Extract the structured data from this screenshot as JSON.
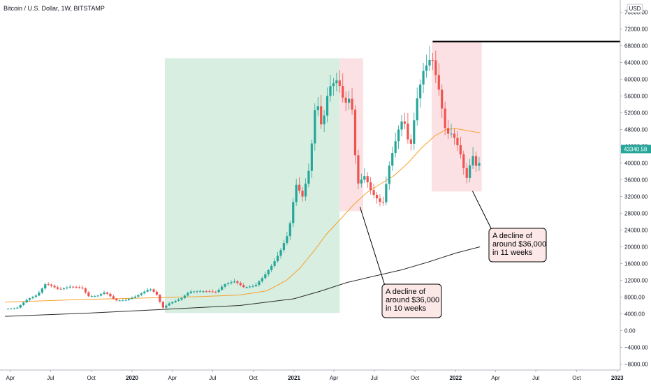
{
  "title": "Bitcoin / U.S. Dollar, 1W, BITSTAMP",
  "currency_unit": "USD",
  "chart_data": {
    "type": "candlestick",
    "symbol": "BTCUSD",
    "exchange": "BITSTAMP",
    "interval": "1W",
    "y_axis": {
      "min": -10000,
      "max": 78000,
      "step": 4000,
      "tick_labels": [
        "76000.00",
        "72000.00",
        "68000.00",
        "64000.00",
        "60000.00",
        "56000.00",
        "52000.00",
        "48000.00",
        "44000.00",
        "40000.00",
        "36000.00",
        "32000.00",
        "28000.00",
        "24000.00",
        "20000.00",
        "16000.00",
        "12000.00",
        "8000.00",
        "4000.00",
        "0.00",
        "−4000.00",
        "−8000.00"
      ]
    },
    "x_axis": {
      "start": "2019-03-20",
      "end": "2022-12-31",
      "tick_labels": [
        {
          "label": "Apr",
          "date": "2019-04-01",
          "bold": false
        },
        {
          "label": "Jul",
          "date": "2019-07-01",
          "bold": false
        },
        {
          "label": "Oct",
          "date": "2019-10-01",
          "bold": false
        },
        {
          "label": "2020",
          "date": "2020-01-01",
          "bold": true
        },
        {
          "label": "Apr",
          "date": "2020-04-01",
          "bold": false
        },
        {
          "label": "Jul",
          "date": "2020-07-01",
          "bold": false
        },
        {
          "label": "Oct",
          "date": "2020-10-01",
          "bold": false
        },
        {
          "label": "2021",
          "date": "2021-01-01",
          "bold": true
        },
        {
          "label": "Apr",
          "date": "2021-04-01",
          "bold": false
        },
        {
          "label": "Jul",
          "date": "2021-07-01",
          "bold": false
        },
        {
          "label": "Oct",
          "date": "2021-10-01",
          "bold": false
        },
        {
          "label": "2022",
          "date": "2022-01-01",
          "bold": true
        },
        {
          "label": "Apr",
          "date": "2022-04-01",
          "bold": false
        },
        {
          "label": "Jul",
          "date": "2022-07-01",
          "bold": false
        },
        {
          "label": "Oct",
          "date": "2022-10-01",
          "bold": false
        },
        {
          "label": "2023",
          "date": "2023-01-01",
          "bold": true
        }
      ]
    },
    "close_path": [
      [
        "2019-03-20",
        5200
      ],
      [
        "2019-04-15",
        5300
      ],
      [
        "2019-05-10",
        7500
      ],
      [
        "2019-06-01",
        8500
      ],
      [
        "2019-06-20",
        11200
      ],
      [
        "2019-07-01",
        10800
      ],
      [
        "2019-07-20",
        9800
      ],
      [
        "2019-08-15",
        10500
      ],
      [
        "2019-09-10",
        10200
      ],
      [
        "2019-09-25",
        8200
      ],
      [
        "2019-10-15",
        8300
      ],
      [
        "2019-11-01",
        9200
      ],
      [
        "2019-11-25",
        7200
      ],
      [
        "2019-12-15",
        7200
      ],
      [
        "2020-01-10",
        8200
      ],
      [
        "2020-02-10",
        10000
      ],
      [
        "2020-02-25",
        8800
      ],
      [
        "2020-03-10",
        5400
      ],
      [
        "2020-03-25",
        6500
      ],
      [
        "2020-04-20",
        7600
      ],
      [
        "2020-05-10",
        9300
      ],
      [
        "2020-06-15",
        9400
      ],
      [
        "2020-07-10",
        9200
      ],
      [
        "2020-07-27",
        11000
      ],
      [
        "2020-08-20",
        11800
      ],
      [
        "2020-09-10",
        10300
      ],
      [
        "2020-10-05",
        10700
      ],
      [
        "2020-10-25",
        13000
      ],
      [
        "2020-11-15",
        16000
      ],
      [
        "2020-12-01",
        19000
      ],
      [
        "2020-12-20",
        23500
      ],
      [
        "2021-01-05",
        35000
      ],
      [
        "2021-01-20",
        32000
      ],
      [
        "2021-02-05",
        39000
      ],
      [
        "2021-02-20",
        56000
      ],
      [
        "2021-03-05",
        48000
      ],
      [
        "2021-03-20",
        58000
      ],
      [
        "2021-04-10",
        60000
      ],
      [
        "2021-04-25",
        54000
      ],
      [
        "2021-05-10",
        56000
      ],
      [
        "2021-05-18",
        43000
      ],
      [
        "2021-05-25",
        35000
      ],
      [
        "2021-06-10",
        37000
      ],
      [
        "2021-06-25",
        33000
      ],
      [
        "2021-07-20",
        30000
      ],
      [
        "2021-08-05",
        40000
      ],
      [
        "2021-08-25",
        48000
      ],
      [
        "2021-09-05",
        51000
      ],
      [
        "2021-09-20",
        43000
      ],
      [
        "2021-10-05",
        55000
      ],
      [
        "2021-10-20",
        62000
      ],
      [
        "2021-11-08",
        65500
      ],
      [
        "2021-11-25",
        57000
      ],
      [
        "2021-12-10",
        47000
      ],
      [
        "2021-12-25",
        47000
      ],
      [
        "2022-01-10",
        43000
      ],
      [
        "2022-01-25",
        36000
      ],
      [
        "2022-02-08",
        42000
      ],
      [
        "2022-02-20",
        38000
      ],
      [
        "2022-02-28",
        43340
      ]
    ],
    "moving_average_50w": [
      [
        "2019-03-20",
        6800
      ],
      [
        "2019-09-01",
        7400
      ],
      [
        "2020-01-01",
        7700
      ],
      [
        "2020-06-01",
        8100
      ],
      [
        "2020-09-01",
        8500
      ],
      [
        "2020-11-01",
        9500
      ],
      [
        "2020-12-15",
        12000
      ],
      [
        "2021-01-15",
        15000
      ],
      [
        "2021-02-15",
        19000
      ],
      [
        "2021-03-15",
        23000
      ],
      [
        "2021-04-15",
        26500
      ],
      [
        "2021-05-15",
        30000
      ],
      [
        "2021-06-15",
        33000
      ],
      [
        "2021-07-15",
        35000
      ],
      [
        "2021-08-15",
        37000
      ],
      [
        "2021-09-15",
        40000
      ],
      [
        "2021-10-15",
        43500
      ],
      [
        "2021-11-15",
        46500
      ],
      [
        "2021-12-10",
        48000
      ],
      [
        "2022-01-01",
        48200
      ],
      [
        "2022-01-25",
        47800
      ],
      [
        "2022-02-25",
        47200
      ]
    ],
    "moving_average_200w": [
      [
        "2019-03-20",
        3400
      ],
      [
        "2019-10-01",
        4200
      ],
      [
        "2020-03-01",
        5000
      ],
      [
        "2020-09-01",
        6000
      ],
      [
        "2021-01-01",
        7600
      ],
      [
        "2021-03-01",
        9400
      ],
      [
        "2021-05-01",
        11500
      ],
      [
        "2021-07-01",
        13000
      ],
      [
        "2021-09-01",
        14500
      ],
      [
        "2021-11-01",
        16400
      ],
      [
        "2022-01-01",
        18500
      ],
      [
        "2022-02-25",
        20000
      ]
    ],
    "last_price": "43340.58",
    "last_price_value": 43340.58,
    "all_time_high_level": 69000,
    "ath_line_start": "2021-11-10",
    "regions": [
      {
        "kind": "rally",
        "from": "2020-03-15",
        "to": "2021-04-14",
        "y_low": 4200,
        "y_high": 65000,
        "color": "#d7eee1"
      },
      {
        "kind": "decline",
        "from": "2021-04-14",
        "to": "2021-06-06",
        "y_low": 28500,
        "y_high": 65000,
        "color": "#fbe1e3"
      },
      {
        "kind": "decline",
        "from": "2021-11-08",
        "to": "2022-03-01",
        "y_low": 33200,
        "y_high": 69000,
        "color": "#fbe1e3"
      }
    ],
    "annotations": [
      {
        "lines": [
          "A decline of",
          "around $36,000",
          "in 10 weeks"
        ],
        "anchor_date": "2021-05-30",
        "anchor_value": 29500
      },
      {
        "lines": [
          "A decline of",
          "around $36,000",
          "in 11 weeks"
        ],
        "anchor_date": "2022-02-08",
        "anchor_value": 33300
      }
    ]
  },
  "colors": {
    "up": "#26a69a",
    "down": "#ef5350",
    "ma50": "#f7a22e",
    "ma200": "#2b2b2b",
    "ath_line": "#000000",
    "price_tag": "#26a69a",
    "axis_line": "#b2b5be"
  }
}
